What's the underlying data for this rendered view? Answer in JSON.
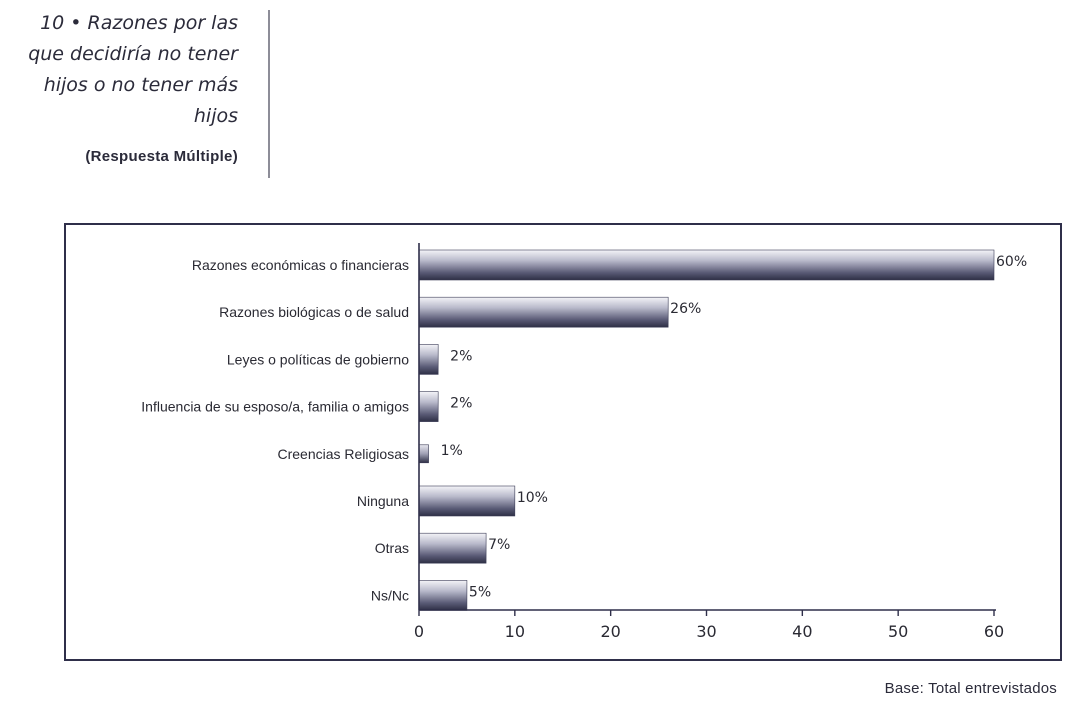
{
  "heading": {
    "title": "10 • Razones por las que decidiría no tener hijos o no tener más hijos",
    "subtitle": "(Respuesta Múltiple)"
  },
  "base_note": "Base: Total entrevistados",
  "chart_data": {
    "type": "bar",
    "orientation": "horizontal",
    "categories": [
      "Razones económicas o financieras",
      "Razones biológicas o de salud",
      "Leyes o políticas de gobierno",
      "Influencia de su esposo/a, familia o amigos",
      "Creencias Religiosas",
      "Ninguna",
      "Otras",
      "Ns/Nc"
    ],
    "values": [
      60,
      26,
      2,
      2,
      1,
      10,
      7,
      5
    ],
    "value_labels": [
      "60%",
      "26%",
      "2%",
      "2%",
      "1%",
      "10%",
      "7%",
      "5%"
    ],
    "xlim": [
      0,
      60
    ],
    "xticks": [
      0,
      10,
      20,
      30,
      40,
      50,
      60
    ],
    "grid": false,
    "bar_color": "#5a5b76"
  }
}
